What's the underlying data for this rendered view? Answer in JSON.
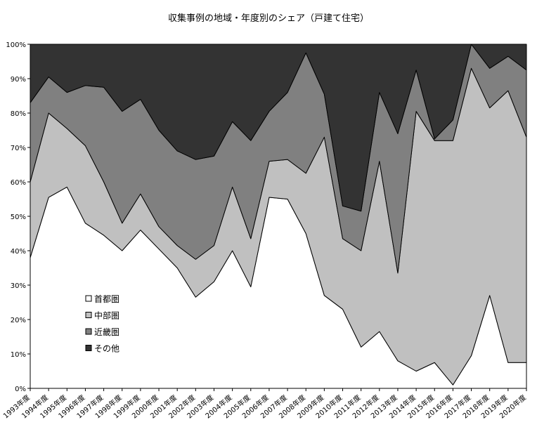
{
  "chart_data": {
    "type": "area",
    "stacked": true,
    "title": "収集事例の地域・年度別のシェア（戸建て住宅）",
    "categories": [
      "1993年度",
      "1994年度",
      "1995年度",
      "1996年度",
      "1997年度",
      "1998年度",
      "1999年度",
      "2000年度",
      "2001年度",
      "2002年度",
      "2003年度",
      "2004年度",
      "2005年度",
      "2006年度",
      "2007年度",
      "2008年度",
      "2009年度",
      "2010年度",
      "2011年度",
      "2012年度",
      "2013年度",
      "2014年度",
      "2015年度",
      "2016年度",
      "2017年度",
      "2018年度",
      "2019年度",
      "2020年度"
    ],
    "y_ticks": [
      "0%",
      "10%",
      "20%",
      "30%",
      "40%",
      "50%",
      "60%",
      "70%",
      "80%",
      "90%",
      "100%"
    ],
    "ylim": [
      0,
      100
    ],
    "grid": false,
    "legend_position": "left-bottom inside",
    "series": [
      {
        "name": "首都圏",
        "color": "#ffffff",
        "values": [
          38,
          55.5,
          58.5,
          48,
          44.5,
          40,
          46,
          40.5,
          35,
          26.5,
          31,
          40,
          29.5,
          55.5,
          55,
          45,
          27,
          23,
          12,
          16.5,
          8,
          5,
          7.5,
          1,
          9.5,
          27,
          7.5,
          7.5
        ]
      },
      {
        "name": "中部圏",
        "color": "#c0c0c0",
        "values": [
          22,
          24.5,
          17,
          22.5,
          15.5,
          8,
          10.5,
          6.5,
          6.5,
          11,
          10.5,
          18.5,
          14,
          10.5,
          11.5,
          17.5,
          46,
          20.5,
          28,
          49.5,
          25.5,
          75.5,
          64.5,
          71,
          83.5,
          54.5,
          79,
          65.5
        ]
      },
      {
        "name": "近畿圏",
        "color": "#808080",
        "values": [
          23,
          10.5,
          10.5,
          17.5,
          27.5,
          32.5,
          27.5,
          28,
          27.5,
          29,
          26,
          19,
          28.5,
          14.5,
          19.5,
          35,
          12.5,
          9.5,
          11.5,
          20,
          40.5,
          12,
          0.5,
          6,
          7,
          11.5,
          10,
          19.5
        ]
      },
      {
        "name": "その他",
        "color": "#333333",
        "values": [
          17,
          9.5,
          14,
          12,
          12.5,
          19.5,
          16,
          25,
          31,
          33.5,
          32.5,
          22.5,
          28,
          19.5,
          14,
          2.5,
          14.5,
          47,
          48.5,
          14,
          26,
          7.5,
          27.5,
          22,
          0,
          7,
          3.5,
          7.5
        ]
      }
    ]
  }
}
